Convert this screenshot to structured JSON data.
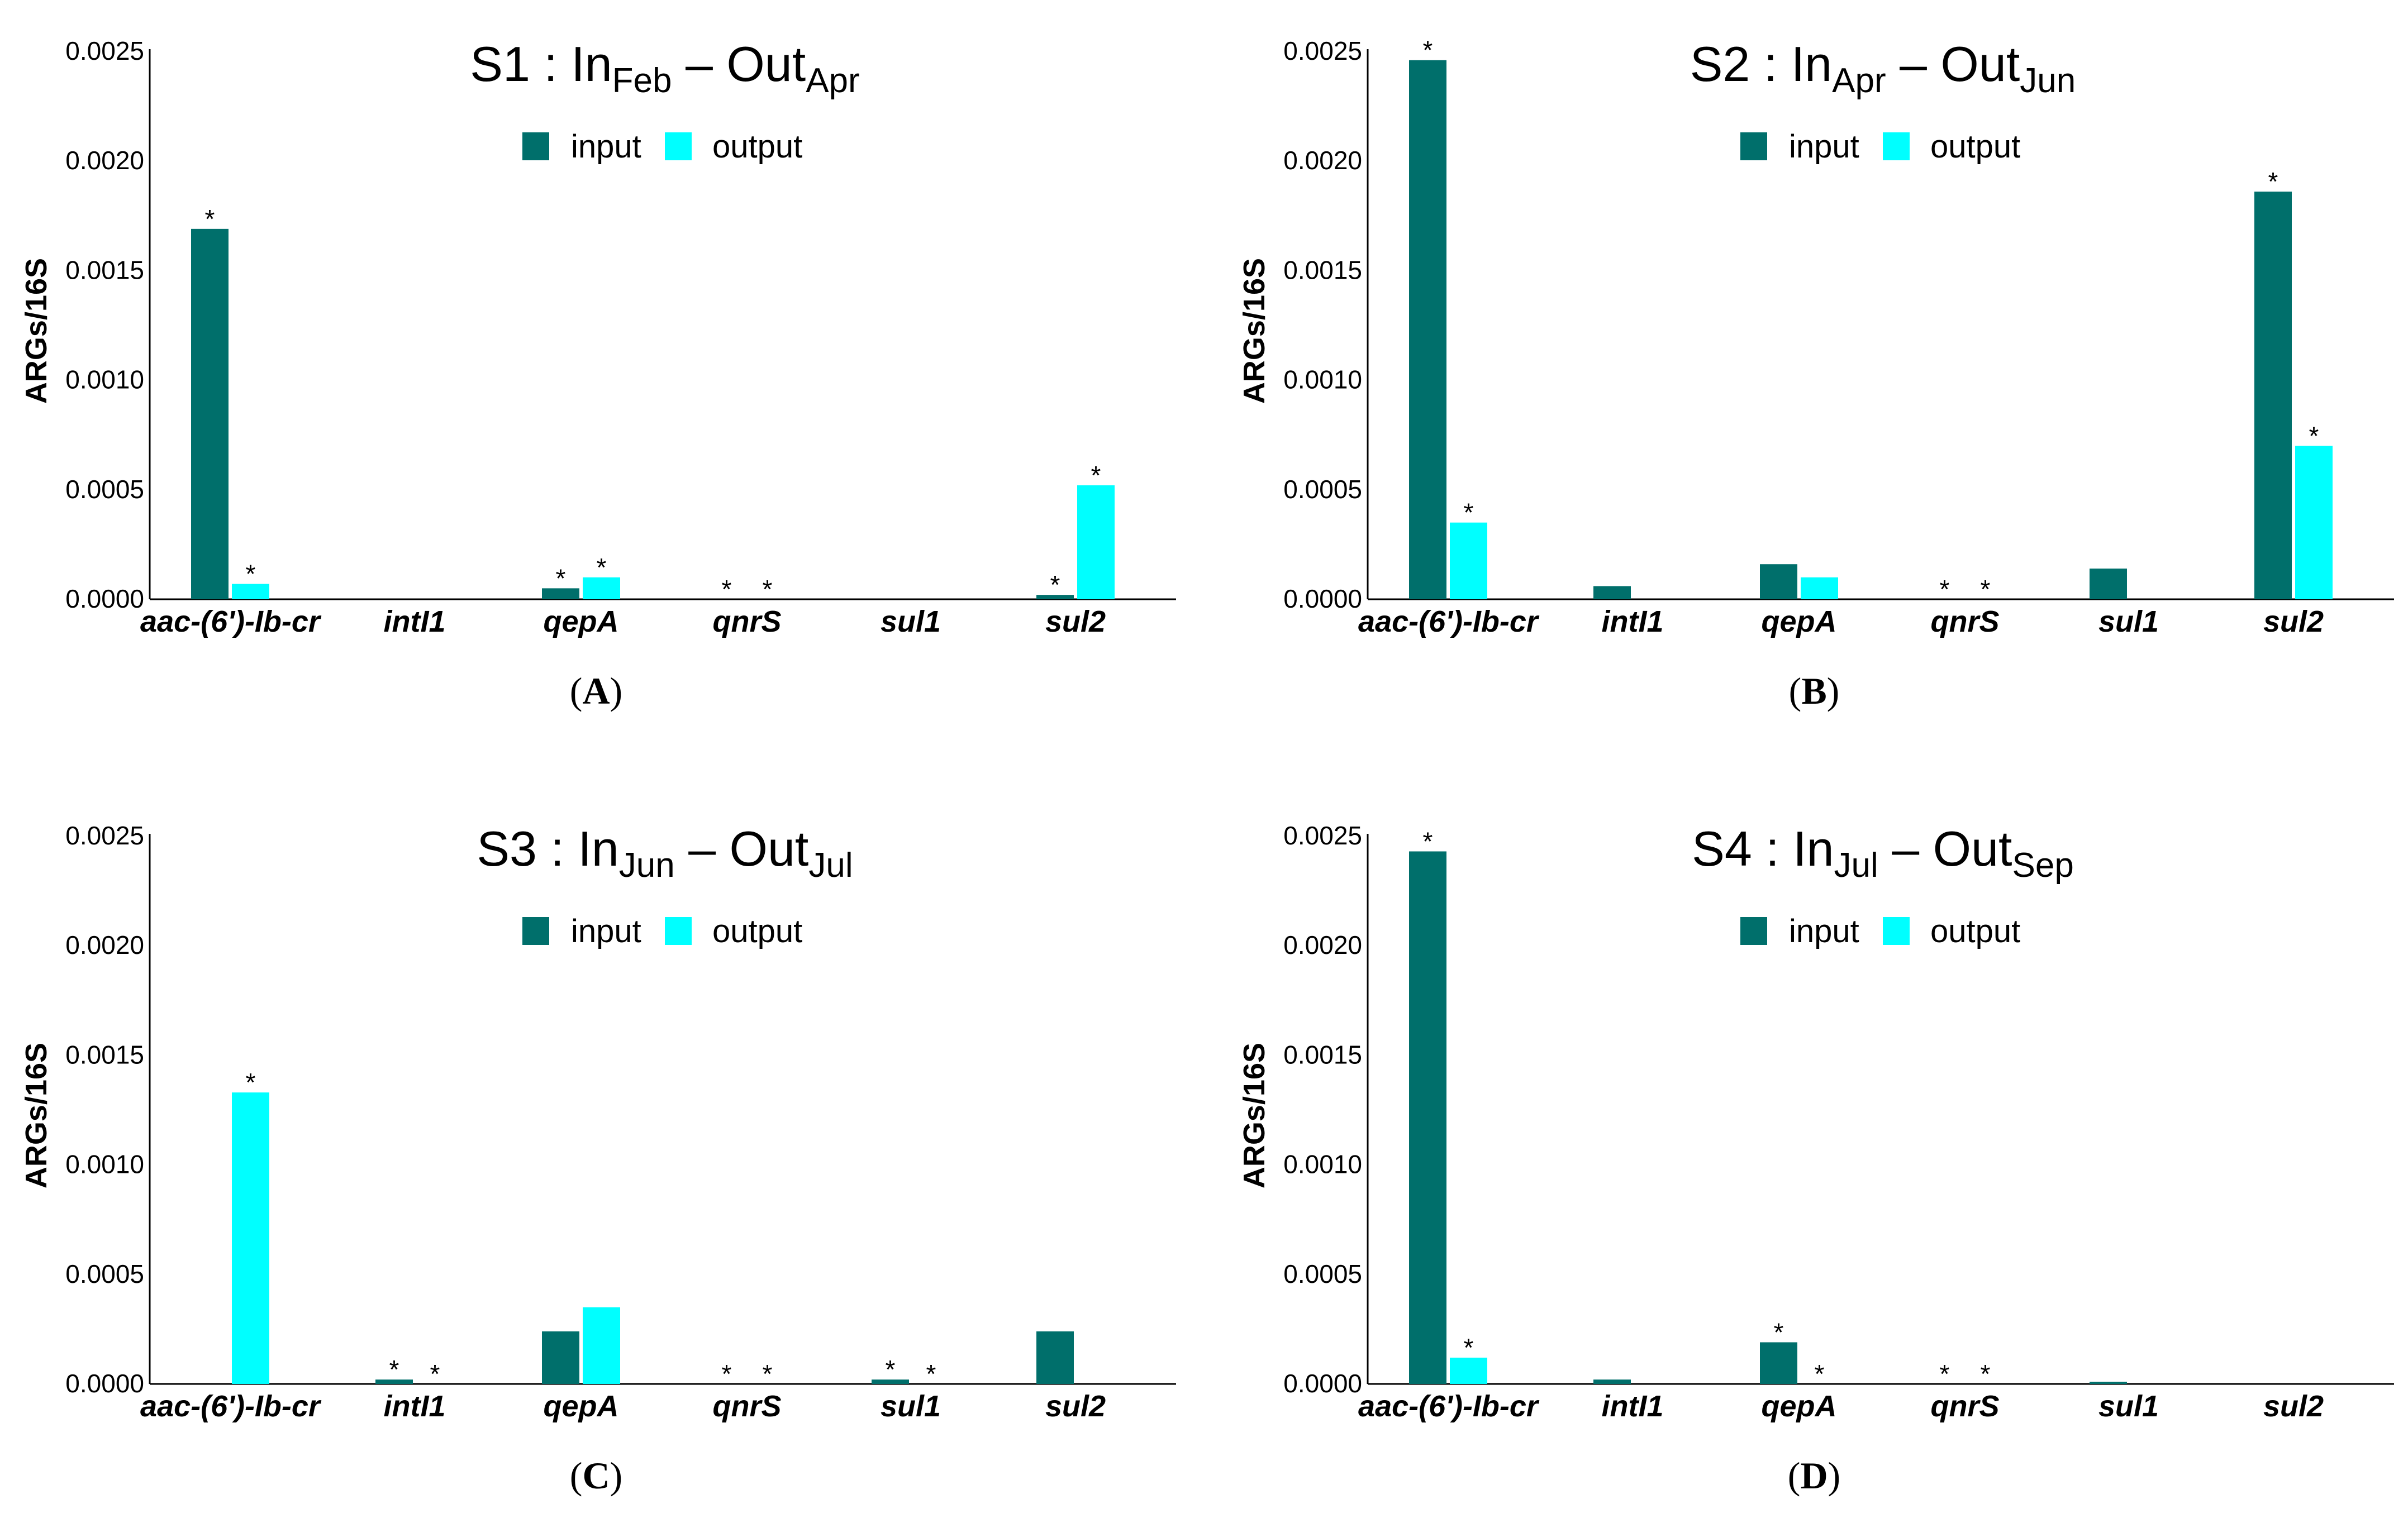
{
  "y_axis_label": "ARGs/16S",
  "y_ticks": [
    "0.0000",
    "0.0005",
    "0.0010",
    "0.0015",
    "0.0020",
    "0.0025"
  ],
  "legend": {
    "input": "input",
    "output": "output"
  },
  "colors": {
    "input": "#006f6b",
    "output": "#00ffff"
  },
  "chart_data": [
    {
      "type": "bar",
      "panel": "A",
      "title": {
        "site": "S1",
        "in_month": "Feb",
        "out_month": "Apr"
      },
      "ylabel": "ARGs/16S",
      "ylim": [
        0,
        0.0025
      ],
      "categories": [
        "aac-(6')-Ib-cr",
        "intI1",
        "qepA",
        "qnrS",
        "sul1",
        "sul2"
      ],
      "series": [
        {
          "name": "input",
          "values": [
            0.00169,
            0.0,
            5e-05,
            0.0,
            0.0,
            2e-05
          ]
        },
        {
          "name": "output",
          "values": [
            7e-05,
            0.0,
            0.0001,
            0.0,
            0.0,
            0.00052
          ]
        }
      ],
      "significance": [
        [
          true,
          true
        ],
        [
          false,
          false
        ],
        [
          true,
          true
        ],
        [
          true,
          true
        ],
        [
          false,
          false
        ],
        [
          true,
          true
        ]
      ]
    },
    {
      "type": "bar",
      "panel": "B",
      "title": {
        "site": "S2",
        "in_month": "Apr",
        "out_month": "Jun"
      },
      "ylabel": "ARGs/16S",
      "ylim": [
        0,
        0.0025
      ],
      "categories": [
        "aac-(6')-Ib-cr",
        "intI1",
        "qepA",
        "qnrS",
        "sul1",
        "sul2"
      ],
      "series": [
        {
          "name": "input",
          "values": [
            0.00246,
            6e-05,
            0.00016,
            0.0,
            0.00014,
            0.00186
          ]
        },
        {
          "name": "output",
          "values": [
            0.00035,
            0.0,
            0.0001,
            0.0,
            0.0,
            0.0007
          ]
        }
      ],
      "significance": [
        [
          true,
          true
        ],
        [
          false,
          false
        ],
        [
          false,
          false
        ],
        [
          true,
          true
        ],
        [
          false,
          false
        ],
        [
          true,
          true
        ]
      ]
    },
    {
      "type": "bar",
      "panel": "C",
      "title": {
        "site": "S3",
        "in_month": "Jun",
        "out_month": "Jul"
      },
      "ylabel": "ARGs/16S",
      "ylim": [
        0,
        0.0025
      ],
      "categories": [
        "aac-(6')-Ib-cr",
        "intI1",
        "qepA",
        "qnrS",
        "sul1",
        "sul2"
      ],
      "series": [
        {
          "name": "input",
          "values": [
            0.0,
            2e-05,
            0.00024,
            0.0,
            2e-05,
            0.00024
          ]
        },
        {
          "name": "output",
          "values": [
            0.00133,
            0.0,
            0.00035,
            0.0,
            0.0,
            0.0
          ]
        }
      ],
      "significance": [
        [
          false,
          true
        ],
        [
          true,
          true
        ],
        [
          false,
          false
        ],
        [
          true,
          true
        ],
        [
          true,
          true
        ],
        [
          false,
          false
        ]
      ]
    },
    {
      "type": "bar",
      "panel": "D",
      "title": {
        "site": "S4",
        "in_month": "Jul",
        "out_month": "Sep"
      },
      "ylabel": "ARGs/16S",
      "ylim": [
        0,
        0.0025
      ],
      "categories": [
        "aac-(6')-Ib-cr",
        "intI1",
        "qepA",
        "qnrS",
        "sul1",
        "sul2"
      ],
      "series": [
        {
          "name": "input",
          "values": [
            0.00243,
            2e-05,
            0.00019,
            0.0,
            1e-05,
            0.0
          ]
        },
        {
          "name": "output",
          "values": [
            0.00012,
            0.0,
            0.0,
            0.0,
            0.0,
            0.0
          ]
        }
      ],
      "significance": [
        [
          true,
          true
        ],
        [
          false,
          false
        ],
        [
          true,
          true
        ],
        [
          true,
          true
        ],
        [
          false,
          false
        ],
        [
          false,
          false
        ]
      ]
    }
  ]
}
